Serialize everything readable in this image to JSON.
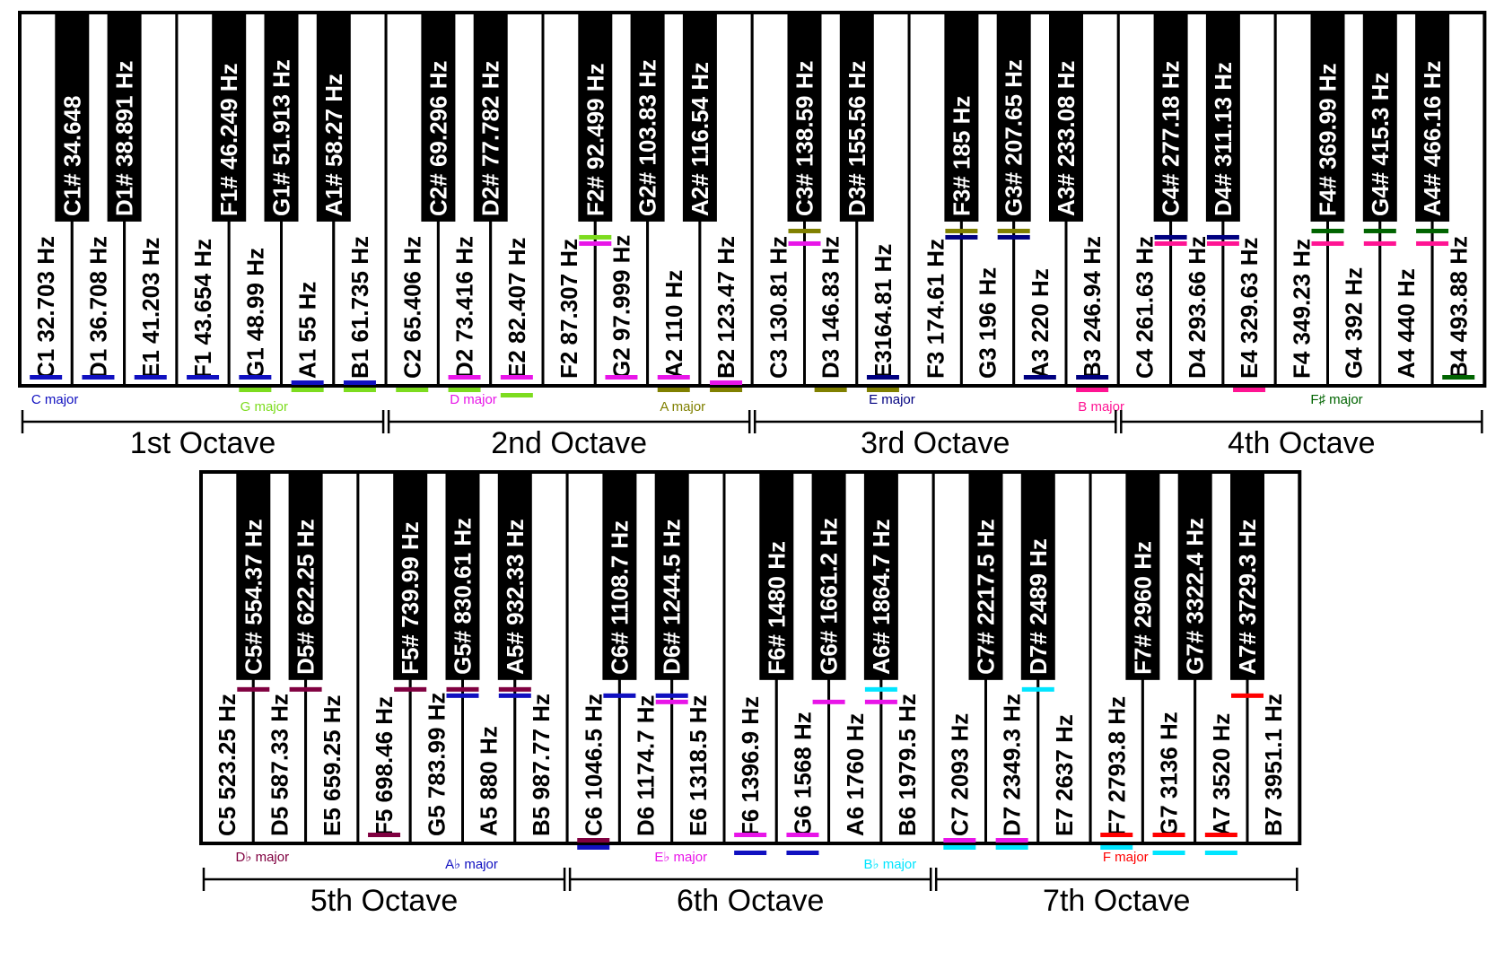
{
  "rows": [
    {
      "octaves": [
        {
          "label": "1st Octave",
          "white": [
            "C1 32.703 Hz",
            "D1 36.708 Hz",
            "E1 41.203 Hz",
            "F1 43.654 Hz",
            "G1 48.99  Hz",
            "A1 55 Hz",
            "B1 61.735 Hz"
          ],
          "black": [
            "C1# 34.648",
            "D1# 38.891 Hz",
            "F1# 46.249 Hz",
            "G1# 51.913 Hz",
            "A1# 58.27 Hz"
          ]
        },
        {
          "label": "2nd Octave",
          "white": [
            "C2 65.406  Hz",
            "D2 73.416 Hz",
            "E2 82.407  Hz",
            "F2 87.307 Hz",
            "G2 97.999 Hz",
            "A2 110 Hz",
            "B2 123.47 Hz"
          ],
          "black": [
            "C2# 69.296 Hz",
            "D2# 77.782 Hz",
            "F2# 92.499 Hz",
            "G2# 103.83 Hz",
            "A2# 116.54 Hz"
          ]
        },
        {
          "label": "3rd Octave",
          "white": [
            "C3 130.81 Hz",
            "D3 146.83 Hz",
            "E3164.81 Hz",
            "F3 174.61 Hz",
            "G3 196 Hz",
            "A3 220 Hz",
            "B3 246.94 Hz"
          ],
          "black": [
            "C3# 138.59 Hz",
            "D3# 155.56 Hz",
            "F3# 185 Hz",
            "G3# 207.65 Hz",
            "A3# 233.08 Hz"
          ]
        },
        {
          "label": "4th Octave",
          "white": [
            "C4 261.63 Hz",
            "D4 293.66 Hz",
            "E4 329.63 Hz",
            "F4 349.23 Hz",
            "G4 392 Hz",
            "A4 440 Hz",
            "B4 493.88 Hz"
          ],
          "black": [
            "C4# 277.18 Hz",
            "D4# 311.13 Hz",
            "F4# 369.99 Hz",
            "G4# 415.3 Hz",
            "A4# 466.16 Hz"
          ]
        }
      ]
    },
    {
      "octaves": [
        {
          "label": "5th Octave",
          "white": [
            "C5 523.25 Hz",
            "D5 587.33 Hz",
            "E5 659.25 Hz",
            "F5 698.46 Hz",
            "G5 783.99 Hz",
            "A5 880 Hz",
            "B5 987.77 Hz"
          ],
          "black": [
            "C5# 554.37 Hz",
            "D5# 622.25 Hz",
            "F5# 739.99 Hz",
            "G5# 830.61 Hz",
            "A5# 932.33 Hz"
          ]
        },
        {
          "label": "6th Octave",
          "white": [
            "C6 1046.5 Hz",
            "D6 1174.7 Hz",
            "E6 1318.5 Hz",
            "F6 1396.9 Hz",
            "G6 1568 Hz",
            "A6 1760 Hz",
            "B6 1979.5 Hz"
          ],
          "black": [
            "C6# 1108.7 Hz",
            "D6# 1244.5 Hz",
            "F6# 1480 Hz",
            "G6# 1661.2 Hz",
            "A6# 1864.7 Hz"
          ]
        },
        {
          "label": "7th Octave",
          "white": [
            "C7 2093 Hz",
            "D7 2349.3 Hz",
            "E7 2637 Hz",
            "F7 2793.8 Hz",
            "G7 3136 Hz",
            "A7 3520 Hz",
            "B7 3951.1 Hz"
          ],
          "black": [
            "C7# 2217.5 Hz",
            "D7# 2489 Hz",
            "F7# 2960 Hz",
            "G7# 3322.4 Hz",
            "A7# 3729.3 Hz"
          ]
        }
      ]
    }
  ],
  "scales": [
    {
      "name": "C major",
      "color": "#1010c0",
      "row": 0,
      "start": 0,
      "notes": [
        0,
        2,
        4,
        5,
        7,
        9,
        11
      ]
    },
    {
      "name": "G major",
      "color": "#7ddc1f",
      "row": 0,
      "start": 7,
      "notes": [
        0,
        2,
        4,
        5,
        7,
        9,
        11
      ]
    },
    {
      "name": "D major",
      "color": "#e815e8",
      "row": 0,
      "start": 14,
      "notes": [
        0,
        2,
        4,
        5,
        7,
        9,
        11
      ]
    },
    {
      "name": "A major",
      "color": "#808000",
      "row": 0,
      "start": 21,
      "notes": [
        0,
        2,
        4,
        5,
        7,
        9,
        11
      ]
    },
    {
      "name": "E major",
      "color": "#000080",
      "row": 0,
      "start": 28,
      "notes": [
        0,
        2,
        4,
        5,
        7,
        9,
        11
      ]
    },
    {
      "name": "B major",
      "color": "#ff1493",
      "row": 0,
      "start": 35,
      "notes": [
        0,
        2,
        4,
        5,
        7,
        9,
        11
      ]
    },
    {
      "name": "F♯ major",
      "color": "#006400",
      "row": 0,
      "start": 42,
      "notes": [
        0,
        2,
        4,
        5,
        7,
        9,
        11
      ]
    },
    {
      "name": "D♭ major",
      "color": "#800040",
      "row": 1,
      "start": 1,
      "notes": [
        0,
        2,
        4,
        5,
        7,
        9,
        11
      ]
    },
    {
      "name": "A♭ major",
      "color": "#1010c0",
      "row": 1,
      "start": 8,
      "notes": [
        0,
        2,
        4,
        5,
        7,
        9,
        11
      ]
    },
    {
      "name": "E♭ major",
      "color": "#e815e8",
      "row": 1,
      "start": 15,
      "notes": [
        0,
        2,
        4,
        5,
        7,
        9,
        11
      ]
    },
    {
      "name": "B♭ major",
      "color": "#00e5ff",
      "row": 1,
      "start": 22,
      "notes": [
        0,
        2,
        4,
        5,
        7,
        9,
        11
      ]
    },
    {
      "name": "F major",
      "color": "#ff0000",
      "row": 1,
      "start": 29,
      "notes": [
        0,
        2,
        4,
        5,
        7,
        9,
        11
      ]
    }
  ]
}
